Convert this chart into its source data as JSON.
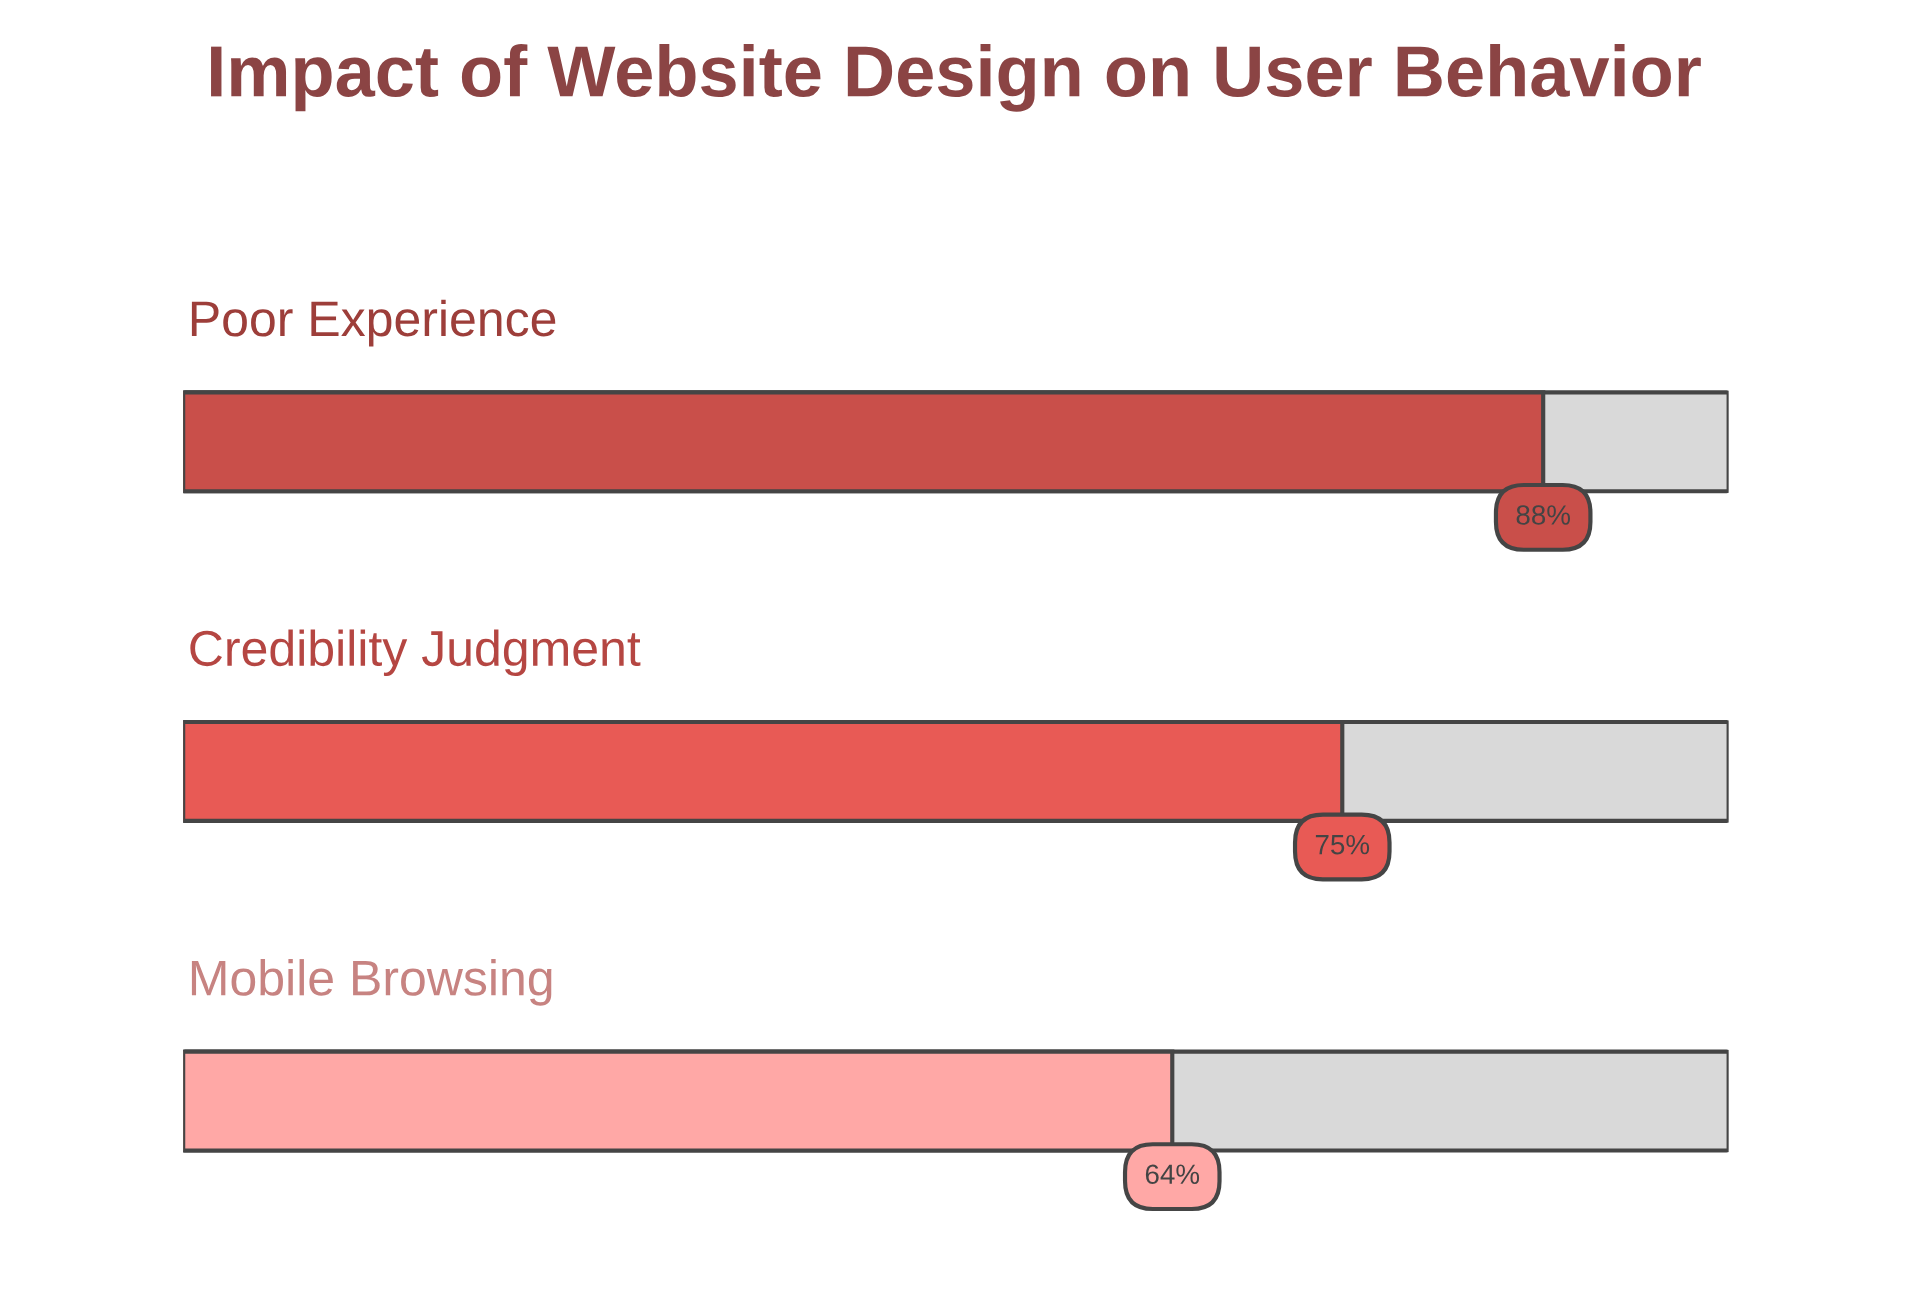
{
  "chart_data": {
    "type": "bar",
    "orientation": "horizontal",
    "title": "Impact of Website Design on User Behavior",
    "categories": [
      "Poor Experience",
      "Credibility Judgment",
      "Mobile Browsing"
    ],
    "values": [
      88,
      75,
      64
    ],
    "colors": [
      "#c94f4a",
      "#e85a55",
      "#ffa8a6"
    ],
    "value_labels": [
      "88%",
      "75%",
      "64%"
    ],
    "xlim": [
      0,
      100
    ]
  }
}
